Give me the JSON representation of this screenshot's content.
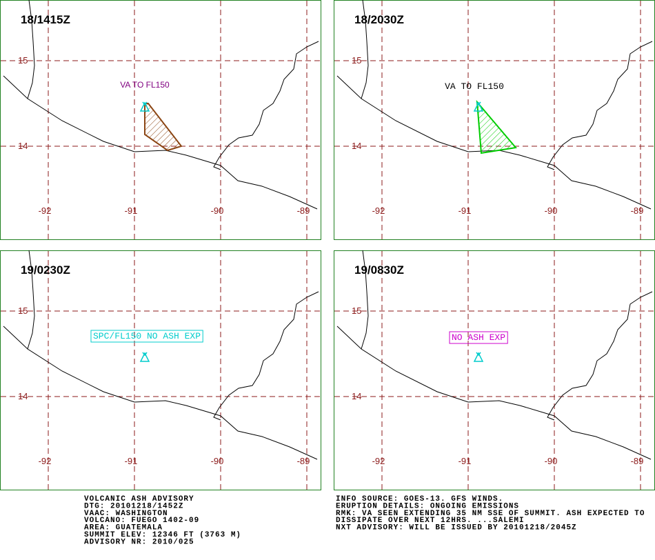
{
  "panels": [
    {
      "time": "18/1415Z",
      "annotation": "VA TO FL150",
      "annotation_color": "#800080",
      "ash_color": "#8b4513"
    },
    {
      "time": "18/2030Z",
      "annotation": "VA TO FL150",
      "annotation_color": "#000000",
      "ash_color": "#00cc00"
    },
    {
      "time": "19/0230Z",
      "annotation": "SPC/FL150 NO ASH EXP",
      "annotation_color": "#00cccc"
    },
    {
      "time": "19/0830Z",
      "annotation": "NO ASH EXP",
      "annotation_color": "#cc00cc"
    }
  ],
  "lat_labels": [
    "15",
    "14"
  ],
  "lon_labels": [
    "-92",
    "-91",
    "-90",
    "-89"
  ],
  "advisory_left": [
    "VOLCANIC ASH ADVISORY",
    "DTG: 20101218/1452Z",
    "VAAC: WASHINGTON",
    "VOLCANO: FUEGO 1402-09",
    "AREA: GUATEMALA",
    "SUMMIT ELEV: 12346 FT (3763 M)",
    "ADVISORY NR: 2010/025"
  ],
  "advisory_right": [
    "INFO SOURCE: GOES-13. GFS WINDS.",
    "ERUPTION DETAILS: ONGOING EMISSIONS",
    "RMK: VA SEEN EXTENDING 35 NM SSE OF SUMMIT. ASH EXPECTED TO",
    "DISSIPATE OVER NEXT 12HRS. ...SALEMI",
    "NXT ADVISORY: WILL BE ISSUED BY 20101218/2045Z"
  ]
}
